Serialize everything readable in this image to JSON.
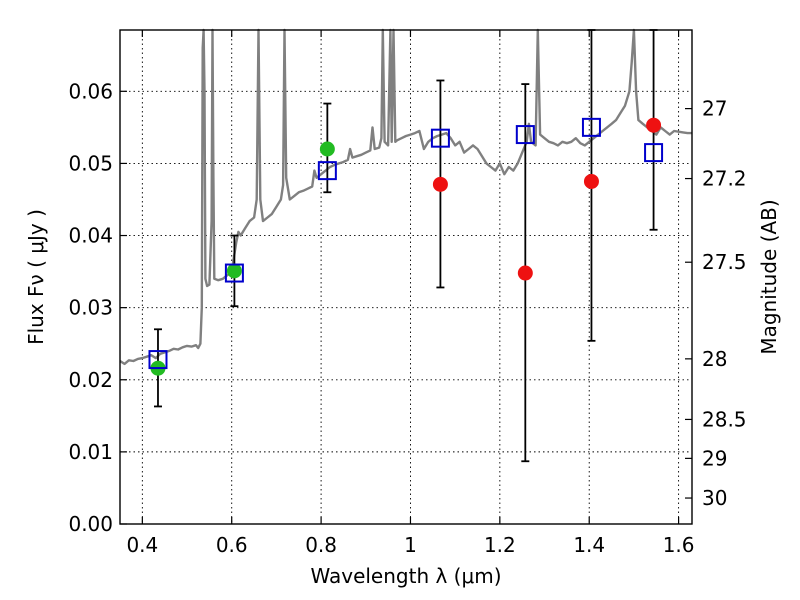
{
  "chart_data": {
    "type": "scatter",
    "xlabel": "Wavelength  λ (μm)",
    "ylabel": "Flux  Fν  ( μJy )",
    "y2label": "Magnitude (AB)",
    "xlim": [
      0.35,
      1.63
    ],
    "ylim": [
      0.0,
      0.0685
    ],
    "grid": true,
    "x_ticks": [
      0.4,
      0.6,
      0.8,
      1.0,
      1.2,
      1.4,
      1.6
    ],
    "x_tick_labels": [
      "0.4",
      "0.6",
      "0.8",
      "1",
      "1.2",
      "1.4",
      "1.6"
    ],
    "y_ticks": [
      0.0,
      0.01,
      0.02,
      0.03,
      0.04,
      0.05,
      0.06
    ],
    "y_tick_labels": [
      "0.00",
      "0.01",
      "0.02",
      "0.03",
      "0.04",
      "0.05",
      "0.06"
    ],
    "y2_ticks": [
      {
        "label": "27",
        "flux": 0.0576
      },
      {
        "label": "27.2",
        "flux": 0.0479
      },
      {
        "label": "27.5",
        "flux": 0.0363
      },
      {
        "label": "28",
        "flux": 0.0229
      },
      {
        "label": "28.5",
        "flux": 0.0145
      },
      {
        "label": "29",
        "flux": 0.0091
      },
      {
        "label": "30",
        "flux": 0.0036
      }
    ],
    "colors": {
      "model": "#808080",
      "detection": "#22bb22",
      "upper": "#ee1111",
      "model_band": "#0000cc",
      "errorbar": "#000000"
    },
    "model_spectrum": [
      [
        0.35,
        0.0226
      ],
      [
        0.36,
        0.0222
      ],
      [
        0.37,
        0.0227
      ],
      [
        0.38,
        0.0226
      ],
      [
        0.39,
        0.0229
      ],
      [
        0.4,
        0.023
      ],
      [
        0.41,
        0.0232
      ],
      [
        0.42,
        0.0234
      ],
      [
        0.43,
        0.023
      ],
      [
        0.44,
        0.0236
      ],
      [
        0.45,
        0.0238
      ],
      [
        0.46,
        0.024
      ],
      [
        0.47,
        0.0243
      ],
      [
        0.48,
        0.0242
      ],
      [
        0.49,
        0.0245
      ],
      [
        0.5,
        0.0247
      ],
      [
        0.51,
        0.0246
      ],
      [
        0.52,
        0.0248
      ],
      [
        0.525,
        0.0244
      ],
      [
        0.53,
        0.025
      ],
      [
        0.533,
        0.03
      ],
      [
        0.535,
        0.066
      ],
      [
        0.537,
        0.0685
      ],
      [
        0.539,
        0.06
      ],
      [
        0.541,
        0.034
      ],
      [
        0.545,
        0.033
      ],
      [
        0.55,
        0.0332
      ],
      [
        0.555,
        0.042
      ],
      [
        0.557,
        0.0685
      ],
      [
        0.559,
        0.048
      ],
      [
        0.561,
        0.034
      ],
      [
        0.57,
        0.0338
      ],
      [
        0.58,
        0.034
      ],
      [
        0.59,
        0.0345
      ],
      [
        0.6,
        0.035
      ],
      [
        0.61,
        0.039
      ],
      [
        0.615,
        0.0405
      ],
      [
        0.62,
        0.04
      ],
      [
        0.63,
        0.041
      ],
      [
        0.64,
        0.042
      ],
      [
        0.65,
        0.0425
      ],
      [
        0.656,
        0.045
      ],
      [
        0.66,
        0.0685
      ],
      [
        0.664,
        0.045
      ],
      [
        0.67,
        0.042
      ],
      [
        0.68,
        0.0425
      ],
      [
        0.69,
        0.043
      ],
      [
        0.7,
        0.044
      ],
      [
        0.71,
        0.045
      ],
      [
        0.715,
        0.047
      ],
      [
        0.718,
        0.0685
      ],
      [
        0.722,
        0.048
      ],
      [
        0.73,
        0.045
      ],
      [
        0.74,
        0.0455
      ],
      [
        0.75,
        0.046
      ],
      [
        0.76,
        0.0462
      ],
      [
        0.77,
        0.0465
      ],
      [
        0.78,
        0.0468
      ],
      [
        0.785,
        0.049
      ],
      [
        0.79,
        0.048
      ],
      [
        0.8,
        0.0485
      ],
      [
        0.81,
        0.049
      ],
      [
        0.82,
        0.0495
      ],
      [
        0.83,
        0.0498
      ],
      [
        0.84,
        0.05
      ],
      [
        0.85,
        0.0502
      ],
      [
        0.86,
        0.0505
      ],
      [
        0.865,
        0.052
      ],
      [
        0.87,
        0.0508
      ],
      [
        0.88,
        0.051
      ],
      [
        0.89,
        0.0512
      ],
      [
        0.9,
        0.0515
      ],
      [
        0.91,
        0.0518
      ],
      [
        0.915,
        0.055
      ],
      [
        0.92,
        0.052
      ],
      [
        0.93,
        0.0522
      ],
      [
        0.935,
        0.0535
      ],
      [
        0.938,
        0.0685
      ],
      [
        0.942,
        0.053
      ],
      [
        0.95,
        0.0525
      ],
      [
        0.955,
        0.0685
      ],
      [
        0.958,
        0.053
      ],
      [
        0.962,
        0.0685
      ],
      [
        0.966,
        0.053
      ],
      [
        0.97,
        0.0532
      ],
      [
        0.98,
        0.0535
      ],
      [
        0.99,
        0.0538
      ],
      [
        1.0,
        0.054
      ],
      [
        1.01,
        0.0542
      ],
      [
        1.02,
        0.0545
      ],
      [
        1.03,
        0.052
      ],
      [
        1.04,
        0.053
      ],
      [
        1.05,
        0.0535
      ],
      [
        1.06,
        0.0538
      ],
      [
        1.07,
        0.054
      ],
      [
        1.08,
        0.0542
      ],
      [
        1.09,
        0.0535
      ],
      [
        1.1,
        0.0525
      ],
      [
        1.11,
        0.053
      ],
      [
        1.12,
        0.0515
      ],
      [
        1.13,
        0.052
      ],
      [
        1.14,
        0.0525
      ],
      [
        1.15,
        0.052
      ],
      [
        1.16,
        0.051
      ],
      [
        1.17,
        0.05
      ],
      [
        1.18,
        0.0495
      ],
      [
        1.19,
        0.049
      ],
      [
        1.2,
        0.05
      ],
      [
        1.21,
        0.0485
      ],
      [
        1.22,
        0.0495
      ],
      [
        1.23,
        0.049
      ],
      [
        1.24,
        0.05
      ],
      [
        1.25,
        0.0515
      ],
      [
        1.26,
        0.053
      ],
      [
        1.265,
        0.0555
      ],
      [
        1.27,
        0.053
      ],
      [
        1.28,
        0.0525
      ],
      [
        1.285,
        0.0685
      ],
      [
        1.29,
        0.054
      ],
      [
        1.3,
        0.0535
      ],
      [
        1.31,
        0.053
      ],
      [
        1.32,
        0.0528
      ],
      [
        1.33,
        0.0525
      ],
      [
        1.34,
        0.053
      ],
      [
        1.35,
        0.0528
      ],
      [
        1.36,
        0.053
      ],
      [
        1.37,
        0.0535
      ],
      [
        1.38,
        0.0528
      ],
      [
        1.39,
        0.0525
      ],
      [
        1.4,
        0.053
      ],
      [
        1.41,
        0.0535
      ],
      [
        1.42,
        0.054
      ],
      [
        1.43,
        0.0545
      ],
      [
        1.44,
        0.055
      ],
      [
        1.45,
        0.0555
      ],
      [
        1.46,
        0.056
      ],
      [
        1.47,
        0.057
      ],
      [
        1.48,
        0.058
      ],
      [
        1.49,
        0.06
      ],
      [
        1.495,
        0.064
      ],
      [
        1.5,
        0.0685
      ],
      [
        1.505,
        0.06
      ],
      [
        1.51,
        0.056
      ],
      [
        1.52,
        0.0555
      ],
      [
        1.53,
        0.055
      ],
      [
        1.54,
        0.0545
      ],
      [
        1.55,
        0.054
      ],
      [
        1.56,
        0.055
      ],
      [
        1.57,
        0.0545
      ],
      [
        1.58,
        0.054
      ],
      [
        1.59,
        0.0545
      ],
      [
        1.6,
        0.0544
      ],
      [
        1.61,
        0.0543
      ],
      [
        1.62,
        0.0542
      ],
      [
        1.63,
        0.0542
      ]
    ],
    "series": [
      {
        "marker": "circle-green",
        "points": [
          {
            "x": 0.435,
            "y": 0.0216,
            "yerr_low": 0.0163,
            "yerr_high": 0.027
          },
          {
            "x": 0.606,
            "y": 0.0351,
            "yerr_low": 0.0302,
            "yerr_high": 0.04
          },
          {
            "x": 0.814,
            "y": 0.052,
            "yerr_low": 0.046,
            "yerr_high": 0.0583
          }
        ]
      },
      {
        "marker": "circle-red",
        "points": [
          {
            "x": 1.067,
            "y": 0.0471,
            "yerr_low": 0.0328,
            "yerr_high": 0.0615
          },
          {
            "x": 1.257,
            "y": 0.0348,
            "yerr_low": 0.0087,
            "yerr_high": 0.061
          },
          {
            "x": 1.405,
            "y": 0.0475,
            "yerr_low": 0.0254,
            "yerr_high": 0.0685
          },
          {
            "x": 1.544,
            "y": 0.0553,
            "yerr_low": 0.0408,
            "yerr_high": 0.0685
          }
        ]
      },
      {
        "marker": "square-blue-open",
        "points": [
          {
            "x": 0.435,
            "y": 0.0228
          },
          {
            "x": 0.606,
            "y": 0.0348
          },
          {
            "x": 0.814,
            "y": 0.049
          },
          {
            "x": 1.067,
            "y": 0.0535
          },
          {
            "x": 1.257,
            "y": 0.054
          },
          {
            "x": 1.405,
            "y": 0.055
          },
          {
            "x": 1.544,
            "y": 0.0515
          }
        ]
      }
    ]
  }
}
